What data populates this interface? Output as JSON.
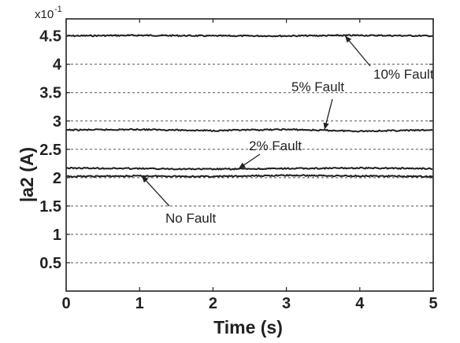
{
  "chart_data": {
    "type": "line",
    "xlabel": "Time (s)",
    "ylabel": "|a2 (A)",
    "y_scale_label": "x10",
    "y_scale_exponent": "-1",
    "xlim": [
      0,
      5
    ],
    "ylim": [
      0,
      4.8
    ],
    "x_ticks": [
      0,
      1,
      2,
      3,
      4,
      5
    ],
    "y_ticks": [
      0.5,
      1,
      1.5,
      2,
      2.5,
      3,
      3.5,
      4,
      4.5
    ],
    "y_tick_labels": [
      "0.5",
      "1",
      "1.5",
      "2",
      "2.5",
      "3",
      "3.5",
      "4",
      "4.5"
    ],
    "grid": "horizontal dashed",
    "series": [
      {
        "name": "10% Fault",
        "x": [
          0,
          1,
          2,
          3,
          4,
          5
        ],
        "values": [
          4.5,
          4.51,
          4.5,
          4.5,
          4.51,
          4.5
        ]
      },
      {
        "name": "5% Fault",
        "x": [
          0,
          1,
          2,
          3,
          4,
          5
        ],
        "values": [
          2.84,
          2.85,
          2.83,
          2.85,
          2.82,
          2.84
        ]
      },
      {
        "name": "2% Fault",
        "x": [
          0,
          1,
          2,
          3,
          4,
          5
        ],
        "values": [
          2.17,
          2.16,
          2.15,
          2.16,
          2.17,
          2.16
        ]
      },
      {
        "name": "No Fault",
        "x": [
          0,
          1,
          2,
          3,
          4,
          5
        ],
        "values": [
          2.02,
          2.03,
          2.02,
          2.04,
          2.03,
          2.02
        ]
      }
    ],
    "annotations": [
      {
        "text": "10% Fault",
        "target_x": 3.8,
        "target_y": 4.5
      },
      {
        "text": "5% Fault",
        "target_x": 3.52,
        "target_y": 2.85
      },
      {
        "text": "2% Fault",
        "target_x": 2.35,
        "target_y": 2.16
      },
      {
        "text": "No Fault",
        "target_x": 1.03,
        "target_y": 2.03
      }
    ]
  }
}
